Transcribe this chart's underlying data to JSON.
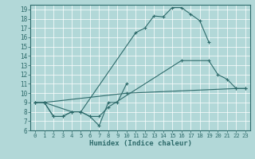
{
  "xlabel": "Humidex (Indice chaleur)",
  "ylabel": "",
  "xlim": [
    -0.5,
    23.5
  ],
  "ylim": [
    6,
    19.5
  ],
  "yticks": [
    6,
    7,
    8,
    9,
    10,
    11,
    12,
    13,
    14,
    15,
    16,
    17,
    18,
    19
  ],
  "xticks": [
    0,
    1,
    2,
    3,
    4,
    5,
    6,
    7,
    8,
    9,
    10,
    11,
    12,
    13,
    14,
    15,
    16,
    17,
    18,
    19,
    20,
    21,
    22,
    23
  ],
  "bg_color": "#b2d8d8",
  "line_color": "#2e6b6b",
  "grid_color": "#c8e0e0",
  "lines": [
    {
      "x": [
        0,
        1,
        10,
        22,
        23
      ],
      "y": [
        9,
        9,
        10,
        10.5,
        10.5
      ]
    },
    {
      "x": [
        0,
        1,
        2,
        3,
        4,
        5,
        6,
        7,
        8,
        9,
        10
      ],
      "y": [
        9,
        9,
        7.5,
        7.5,
        8,
        8,
        7.5,
        6.5,
        9,
        9,
        11
      ]
    },
    {
      "x": [
        0,
        1,
        2,
        3,
        4,
        5,
        6,
        7,
        8,
        16,
        19,
        20,
        21,
        22,
        23
      ],
      "y": [
        9,
        9,
        7.5,
        7.5,
        8,
        8,
        7.5,
        7.5,
        8.5,
        13.5,
        13.5,
        12,
        11.5,
        10.5,
        10.5
      ]
    },
    {
      "x": [
        1,
        4,
        5,
        11,
        12,
        13,
        14,
        15,
        16,
        17,
        18,
        19
      ],
      "y": [
        9,
        8,
        8,
        16.5,
        17,
        18.3,
        18.2,
        19.2,
        19.2,
        18.5,
        17.8,
        15.5
      ]
    }
  ]
}
